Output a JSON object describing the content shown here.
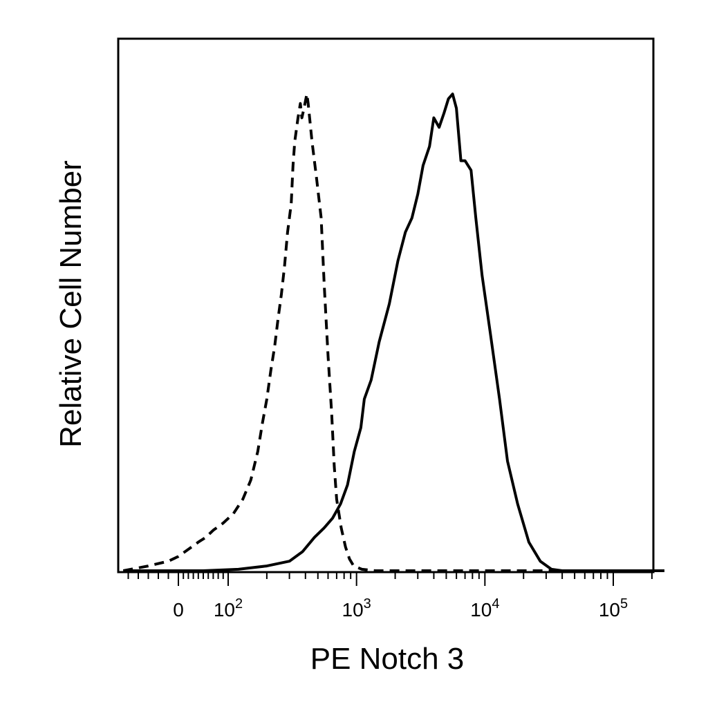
{
  "chart_data": {
    "type": "line",
    "chart_kind": "flow cytometry histogram",
    "xlabel": "PE Notch 3",
    "ylabel": "Relative Cell Number",
    "x_scale": "biexponential (linear near 0, log above)",
    "xlim": [
      -60,
      250000
    ],
    "ylim": [
      0,
      100
    ],
    "grid": false,
    "legend": "none",
    "x_ticks": [
      {
        "value": 0,
        "label": "0"
      },
      {
        "value": 100,
        "base": "10",
        "exp": "2"
      },
      {
        "value": 1000,
        "base": "10",
        "exp": "3"
      },
      {
        "value": 10000,
        "base": "10",
        "exp": "4"
      },
      {
        "value": 100000,
        "base": "10",
        "exp": "5"
      }
    ],
    "series": [
      {
        "style": "dashed",
        "color": "#000000",
        "points": [
          [
            -55,
            0
          ],
          [
            -30,
            1
          ],
          [
            -10,
            2
          ],
          [
            0,
            3
          ],
          [
            20,
            4.5
          ],
          [
            40,
            6
          ],
          [
            55,
            7
          ],
          [
            70,
            8.5
          ],
          [
            90,
            10
          ],
          [
            110,
            12
          ],
          [
            130,
            15
          ],
          [
            150,
            19
          ],
          [
            170,
            25
          ],
          [
            185,
            31
          ],
          [
            200,
            36
          ],
          [
            215,
            42
          ],
          [
            230,
            47
          ],
          [
            245,
            53
          ],
          [
            260,
            58
          ],
          [
            275,
            64
          ],
          [
            290,
            71
          ],
          [
            310,
            77
          ],
          [
            320,
            85
          ],
          [
            330,
            90
          ],
          [
            350,
            95
          ],
          [
            365,
            98
          ],
          [
            375,
            95
          ],
          [
            390,
            97
          ],
          [
            410,
            100
          ],
          [
            420,
            98
          ],
          [
            450,
            90
          ],
          [
            490,
            82
          ],
          [
            530,
            74
          ],
          [
            560,
            60
          ],
          [
            600,
            45
          ],
          [
            640,
            33
          ],
          [
            670,
            22
          ],
          [
            700,
            15
          ],
          [
            760,
            9
          ],
          [
            820,
            5
          ],
          [
            880,
            2.5
          ],
          [
            950,
            1
          ],
          [
            1100,
            0.3
          ],
          [
            1400,
            0
          ],
          [
            250000,
            0
          ]
        ]
      },
      {
        "style": "solid",
        "color": "#000000",
        "points": [
          [
            -55,
            0
          ],
          [
            50,
            0
          ],
          [
            120,
            0.3
          ],
          [
            200,
            1
          ],
          [
            300,
            2
          ],
          [
            380,
            4
          ],
          [
            470,
            7
          ],
          [
            560,
            9
          ],
          [
            650,
            11
          ],
          [
            750,
            14
          ],
          [
            850,
            18
          ],
          [
            960,
            25
          ],
          [
            1080,
            30
          ],
          [
            1150,
            36
          ],
          [
            1300,
            40
          ],
          [
            1500,
            48
          ],
          [
            1800,
            56
          ],
          [
            2100,
            65
          ],
          [
            2400,
            71
          ],
          [
            2700,
            74
          ],
          [
            3000,
            79
          ],
          [
            3300,
            85
          ],
          [
            3700,
            89
          ],
          [
            4000,
            95
          ],
          [
            4400,
            93
          ],
          [
            4800,
            96
          ],
          [
            5200,
            99
          ],
          [
            5600,
            100
          ],
          [
            6000,
            97
          ],
          [
            6500,
            86
          ],
          [
            7000,
            86
          ],
          [
            7800,
            84
          ],
          [
            8500,
            74
          ],
          [
            9500,
            62
          ],
          [
            11000,
            50
          ],
          [
            13000,
            36
          ],
          [
            15000,
            23
          ],
          [
            18000,
            14
          ],
          [
            22000,
            6
          ],
          [
            27000,
            2
          ],
          [
            33000,
            0.3
          ],
          [
            40000,
            0
          ],
          [
            250000,
            0
          ]
        ]
      }
    ]
  }
}
